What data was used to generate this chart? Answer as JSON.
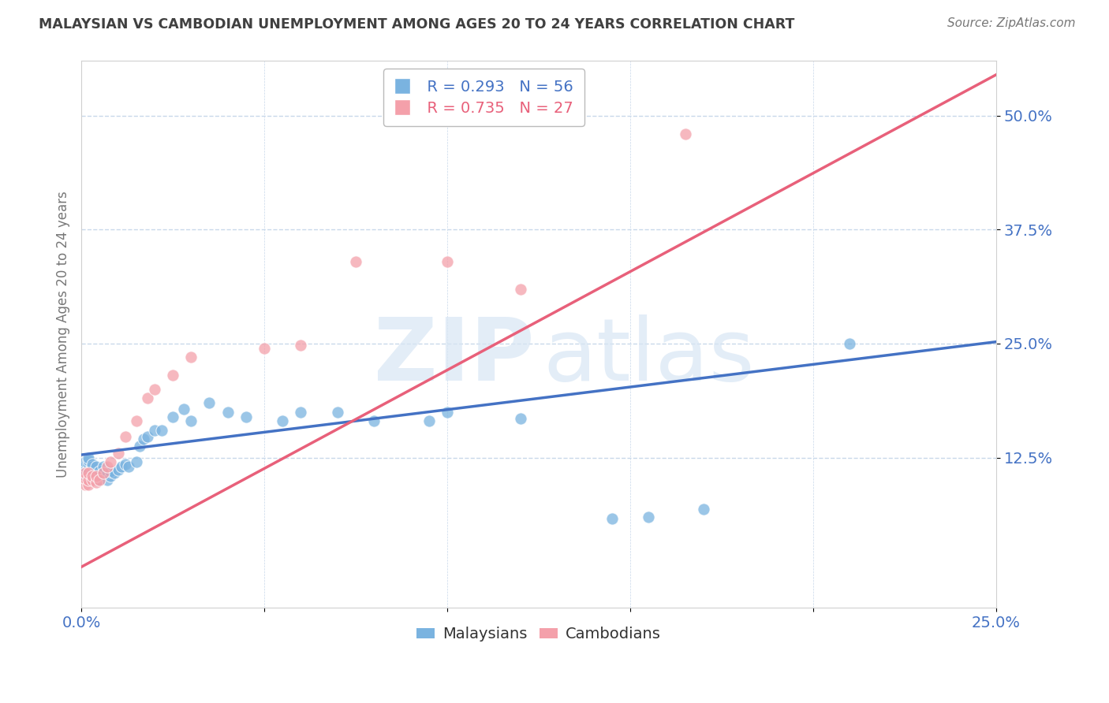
{
  "title": "MALAYSIAN VS CAMBODIAN UNEMPLOYMENT AMONG AGES 20 TO 24 YEARS CORRELATION CHART",
  "source": "Source: ZipAtlas.com",
  "xlim": [
    0.0,
    0.25
  ],
  "ylim": [
    -0.04,
    0.56
  ],
  "blue_R": "R = 0.293",
  "blue_N": "N = 56",
  "pink_R": "R = 0.735",
  "pink_N": "N = 27",
  "blue_color": "#7ab3e0",
  "pink_color": "#f4a0aa",
  "blue_line_color": "#4472c4",
  "pink_line_color": "#e8607a",
  "ylabel": "Unemployment Among Ages 20 to 24 years",
  "axis_color": "#4472c4",
  "grid_color": "#c8d8ea",
  "title_color": "#404040",
  "blue_line_x": [
    0.0,
    0.25
  ],
  "blue_line_y": [
    0.128,
    0.252
  ],
  "pink_line_x": [
    0.0,
    0.25
  ],
  "pink_line_y": [
    0.005,
    0.545
  ],
  "malaysians_x": [
    0.001,
    0.001,
    0.001,
    0.001,
    0.001,
    0.002,
    0.002,
    0.002,
    0.002,
    0.002,
    0.002,
    0.003,
    0.003,
    0.003,
    0.003,
    0.003,
    0.004,
    0.004,
    0.004,
    0.005,
    0.005,
    0.005,
    0.006,
    0.006,
    0.007,
    0.007,
    0.008,
    0.008,
    0.009,
    0.01,
    0.011,
    0.012,
    0.013,
    0.015,
    0.016,
    0.017,
    0.018,
    0.02,
    0.022,
    0.025,
    0.028,
    0.03,
    0.035,
    0.04,
    0.045,
    0.055,
    0.06,
    0.07,
    0.08,
    0.095,
    0.1,
    0.12,
    0.145,
    0.155,
    0.17,
    0.21
  ],
  "malaysians_y": [
    0.105,
    0.11,
    0.115,
    0.115,
    0.12,
    0.105,
    0.108,
    0.112,
    0.118,
    0.122,
    0.125,
    0.105,
    0.108,
    0.112,
    0.115,
    0.118,
    0.1,
    0.108,
    0.115,
    0.1,
    0.105,
    0.11,
    0.108,
    0.115,
    0.1,
    0.108,
    0.105,
    0.11,
    0.108,
    0.112,
    0.115,
    0.118,
    0.115,
    0.12,
    0.138,
    0.145,
    0.148,
    0.155,
    0.155,
    0.17,
    0.178,
    0.165,
    0.185,
    0.175,
    0.17,
    0.165,
    0.175,
    0.175,
    0.165,
    0.165,
    0.175,
    0.168,
    0.058,
    0.06,
    0.068,
    0.25
  ],
  "cambodians_x": [
    0.001,
    0.001,
    0.001,
    0.002,
    0.002,
    0.002,
    0.003,
    0.003,
    0.004,
    0.004,
    0.005,
    0.006,
    0.007,
    0.008,
    0.01,
    0.012,
    0.015,
    0.018,
    0.02,
    0.025,
    0.03,
    0.05,
    0.06,
    0.075,
    0.1,
    0.12,
    0.165
  ],
  "cambodians_y": [
    0.095,
    0.102,
    0.108,
    0.095,
    0.1,
    0.108,
    0.1,
    0.105,
    0.098,
    0.105,
    0.1,
    0.108,
    0.115,
    0.12,
    0.13,
    0.148,
    0.165,
    0.19,
    0.2,
    0.215,
    0.235,
    0.245,
    0.248,
    0.34,
    0.34,
    0.31,
    0.48
  ]
}
